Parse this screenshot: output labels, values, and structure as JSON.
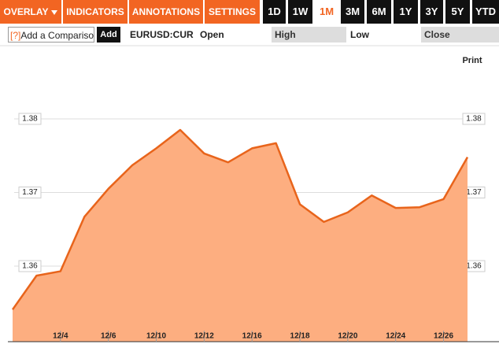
{
  "toolbar": {
    "menus": [
      "OVERLAY",
      "INDICATORS",
      "ANNOTATIONS",
      "SETTINGS"
    ],
    "ranges": [
      "1D",
      "1W",
      "1M",
      "3M",
      "6M",
      "1Y",
      "3Y",
      "5Y",
      "YTD"
    ]
  },
  "comparison": {
    "help": "[?]",
    "placeholder": "Add a Comparison",
    "button": "Add"
  },
  "quote": {
    "ticker": "EURUSD:CUR",
    "fields": [
      "Open",
      "High",
      "Low",
      "Close"
    ]
  },
  "print": "Print",
  "chart_data": {
    "type": "area",
    "categories": [
      null,
      null,
      "12/4",
      null,
      "12/6",
      null,
      "12/10",
      null,
      "12/12",
      null,
      "12/16",
      null,
      "12/18",
      null,
      "12/20",
      null,
      "12/24",
      null,
      "12/26",
      null
    ],
    "series": [
      {
        "name": "EURUSD:CUR",
        "color": "#e8641b",
        "fill": "#fdae80",
        "values": [
          1.3541,
          1.3587,
          1.3593,
          1.3667,
          1.3705,
          1.3737,
          1.376,
          1.3785,
          1.3753,
          1.3741,
          1.376,
          1.3767,
          1.3684,
          1.366,
          1.3673,
          1.3696,
          1.3679,
          1.368,
          1.3691,
          1.3748
        ]
      }
    ],
    "ylim": [
      1.35,
      1.39
    ],
    "yticks": [
      1.36,
      1.37,
      1.38
    ],
    "grid": true
  }
}
